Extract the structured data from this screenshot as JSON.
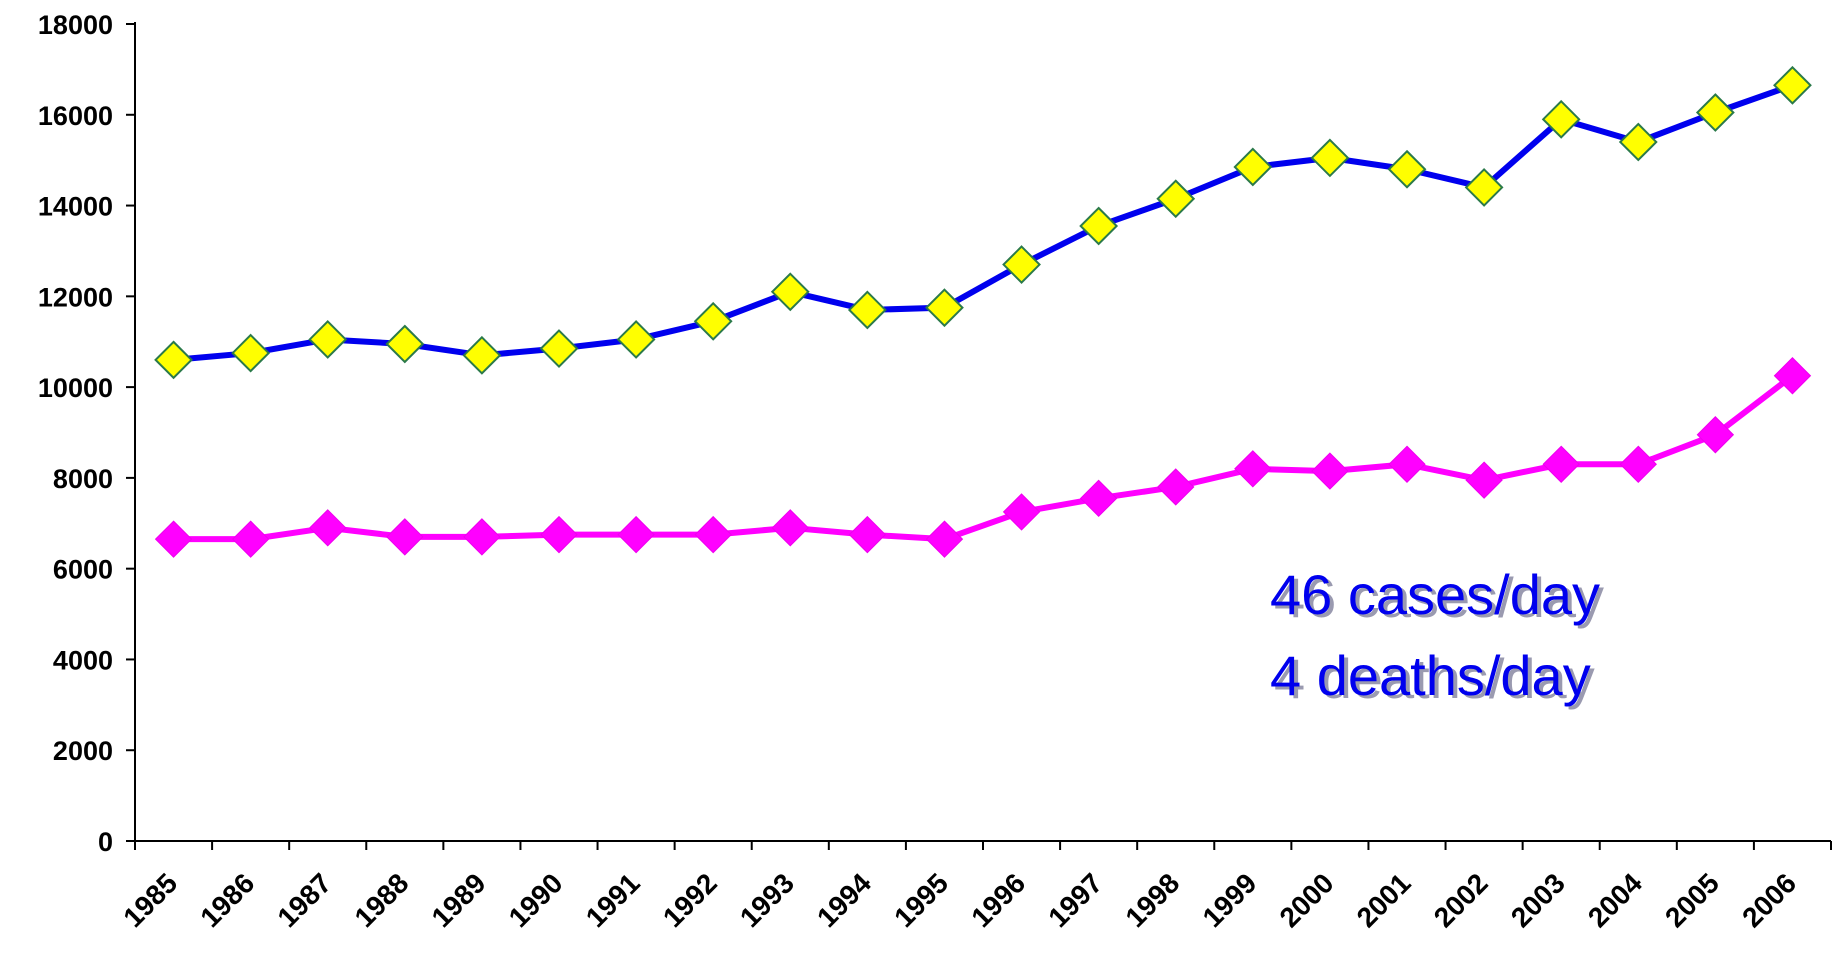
{
  "chart_data": {
    "type": "line",
    "title": "",
    "xlabel": "",
    "ylabel": "",
    "x": [
      "1985",
      "1986",
      "1987",
      "1988",
      "1989",
      "1990",
      "1991",
      "1992",
      "1993",
      "1994",
      "1995",
      "1996",
      "1997",
      "1998",
      "1999",
      "2000",
      "2001",
      "2002",
      "2003",
      "2004",
      "2005",
      "2006"
    ],
    "ylim": [
      0,
      18000
    ],
    "yticks": [
      0,
      2000,
      4000,
      6000,
      8000,
      10000,
      12000,
      14000,
      16000,
      18000
    ],
    "grid": false,
    "legend": "none",
    "series": [
      {
        "color": "#0000ee",
        "marker": "diamond",
        "marker_fill": "#ffff00",
        "values": [
          10600,
          10750,
          11050,
          10950,
          10700,
          10850,
          11050,
          11450,
          12100,
          11700,
          11750,
          12700,
          13550,
          14150,
          14850,
          15050,
          14800,
          14400,
          15900,
          15400,
          16050,
          16650
        ]
      },
      {
        "color": "#ff00ff",
        "marker": "diamond",
        "marker_fill": "#ff00ff",
        "values": [
          6650,
          6650,
          6900,
          6700,
          6700,
          6750,
          6750,
          6750,
          6900,
          6750,
          6650,
          7250,
          7550,
          7800,
          8200,
          8150,
          8300,
          7950,
          8300,
          8300,
          8950,
          10250
        ]
      }
    ],
    "annotations": [
      {
        "text": "46 cases/day"
      },
      {
        "text": "4 deaths/day"
      }
    ]
  }
}
